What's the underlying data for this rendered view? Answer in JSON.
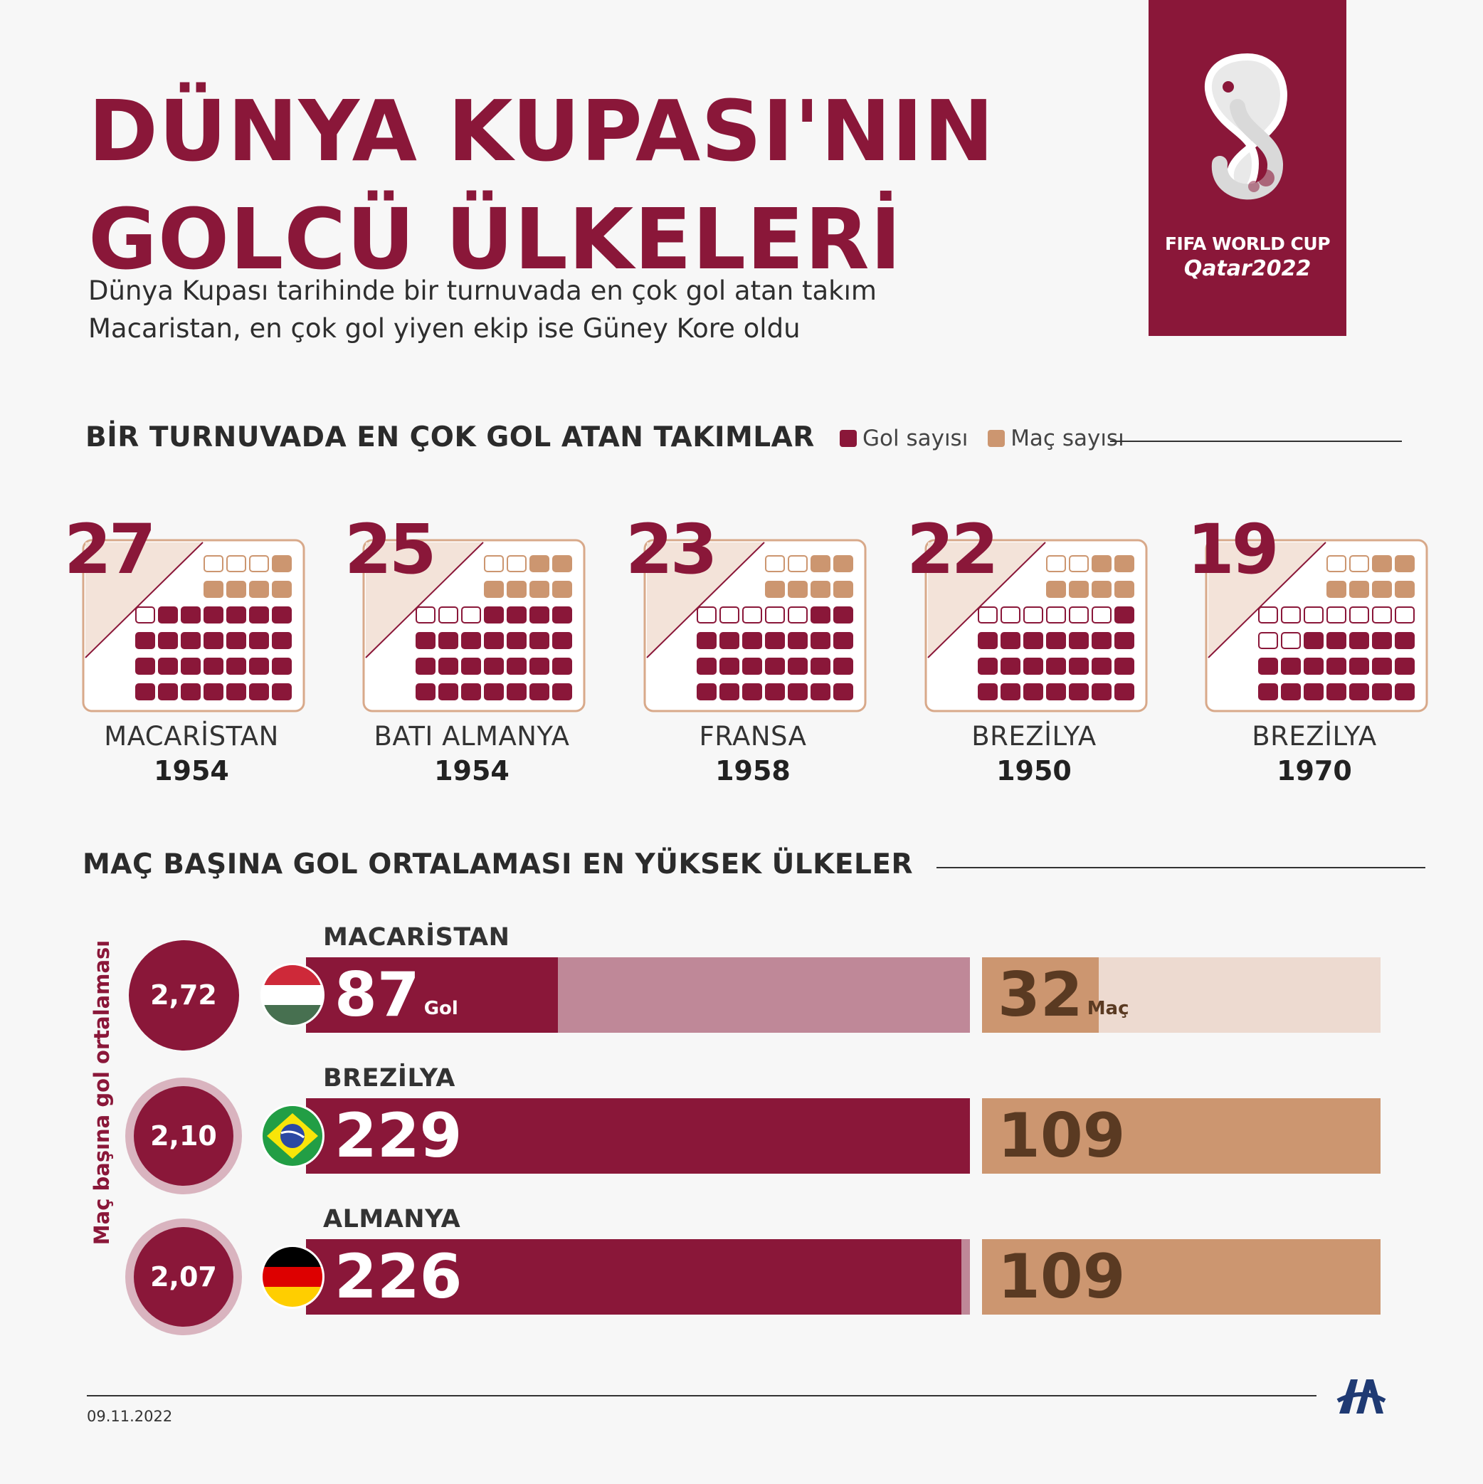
{
  "header": {
    "title_line1": "DÜNYA KUPASI'NIN",
    "title_line2": "GOLCÜ ÜLKELERİ",
    "subtitle_line1": "Dünya Kupası tarihinde bir turnuvada en çok gol atan takım",
    "subtitle_line2": "Macaristan, en çok gol yiyen ekip ise Güney Kore oldu"
  },
  "logo": {
    "line1": "FIFA WORLD CUP",
    "line2": "Qatar2022"
  },
  "section1": {
    "title": "BİR TURNUVADA EN ÇOK GOL ATAN TAKIMLAR",
    "legend_goals": "Gol sayısı",
    "legend_matches": "Maç sayısı"
  },
  "section2": {
    "title": "MAÇ BAŞINA GOL ORTALAMASI EN YÜKSEK ÜLKELER",
    "axis_label": "Maç başına gol ortalaması"
  },
  "colors": {
    "goal": "#8a1739",
    "match": "#cc9670",
    "goal_light": "#bf8898",
    "match_light": "#eddad0",
    "match_text": "#5a3a22"
  },
  "chart_data": [
    {
      "type": "table",
      "categories": [
        "MACARİSTAN 1954",
        "BATI ALMANYA 1954",
        "FRANSA 1958",
        "BREZİLYA 1950",
        "BREZİLYA 1970"
      ],
      "teams": [
        {
          "name": "MACARİSTAN",
          "year": "1954",
          "goals": 27,
          "matches": 5
        },
        {
          "name": "BATI ALMANYA",
          "year": "1954",
          "goals": 25,
          "matches": 6
        },
        {
          "name": "FRANSA",
          "year": "1958",
          "goals": 23,
          "matches": 6
        },
        {
          "name": "BREZİLYA",
          "year": "1950",
          "goals": 22,
          "matches": 6
        },
        {
          "name": "BREZİLYA",
          "year": "1970",
          "goals": 19,
          "matches": 6
        }
      ],
      "series": [
        {
          "name": "Gol sayısı",
          "values": [
            27,
            25,
            23,
            22,
            19
          ]
        },
        {
          "name": "Maç sayısı",
          "values": [
            5,
            6,
            6,
            6,
            6
          ]
        }
      ]
    },
    {
      "type": "bar",
      "categories": [
        "MACARİSTAN",
        "BREZİLYA",
        "ALMANYA"
      ],
      "rows": [
        {
          "country": "MACARİSTAN",
          "average": "2,72",
          "goals": 87,
          "matches": 32,
          "goal_unit": "Gol",
          "match_unit": "Maç",
          "flag": "hungary"
        },
        {
          "country": "BREZİLYA",
          "average": "2,10",
          "goals": 229,
          "matches": 109,
          "goal_unit": "",
          "match_unit": "",
          "flag": "brazil"
        },
        {
          "country": "ALMANYA",
          "average": "2,07",
          "goals": 226,
          "matches": 109,
          "goal_unit": "",
          "match_unit": "",
          "flag": "germany"
        }
      ],
      "goal_max": 229,
      "match_max": 109
    }
  ],
  "footer": {
    "date": "09.11.2022"
  }
}
